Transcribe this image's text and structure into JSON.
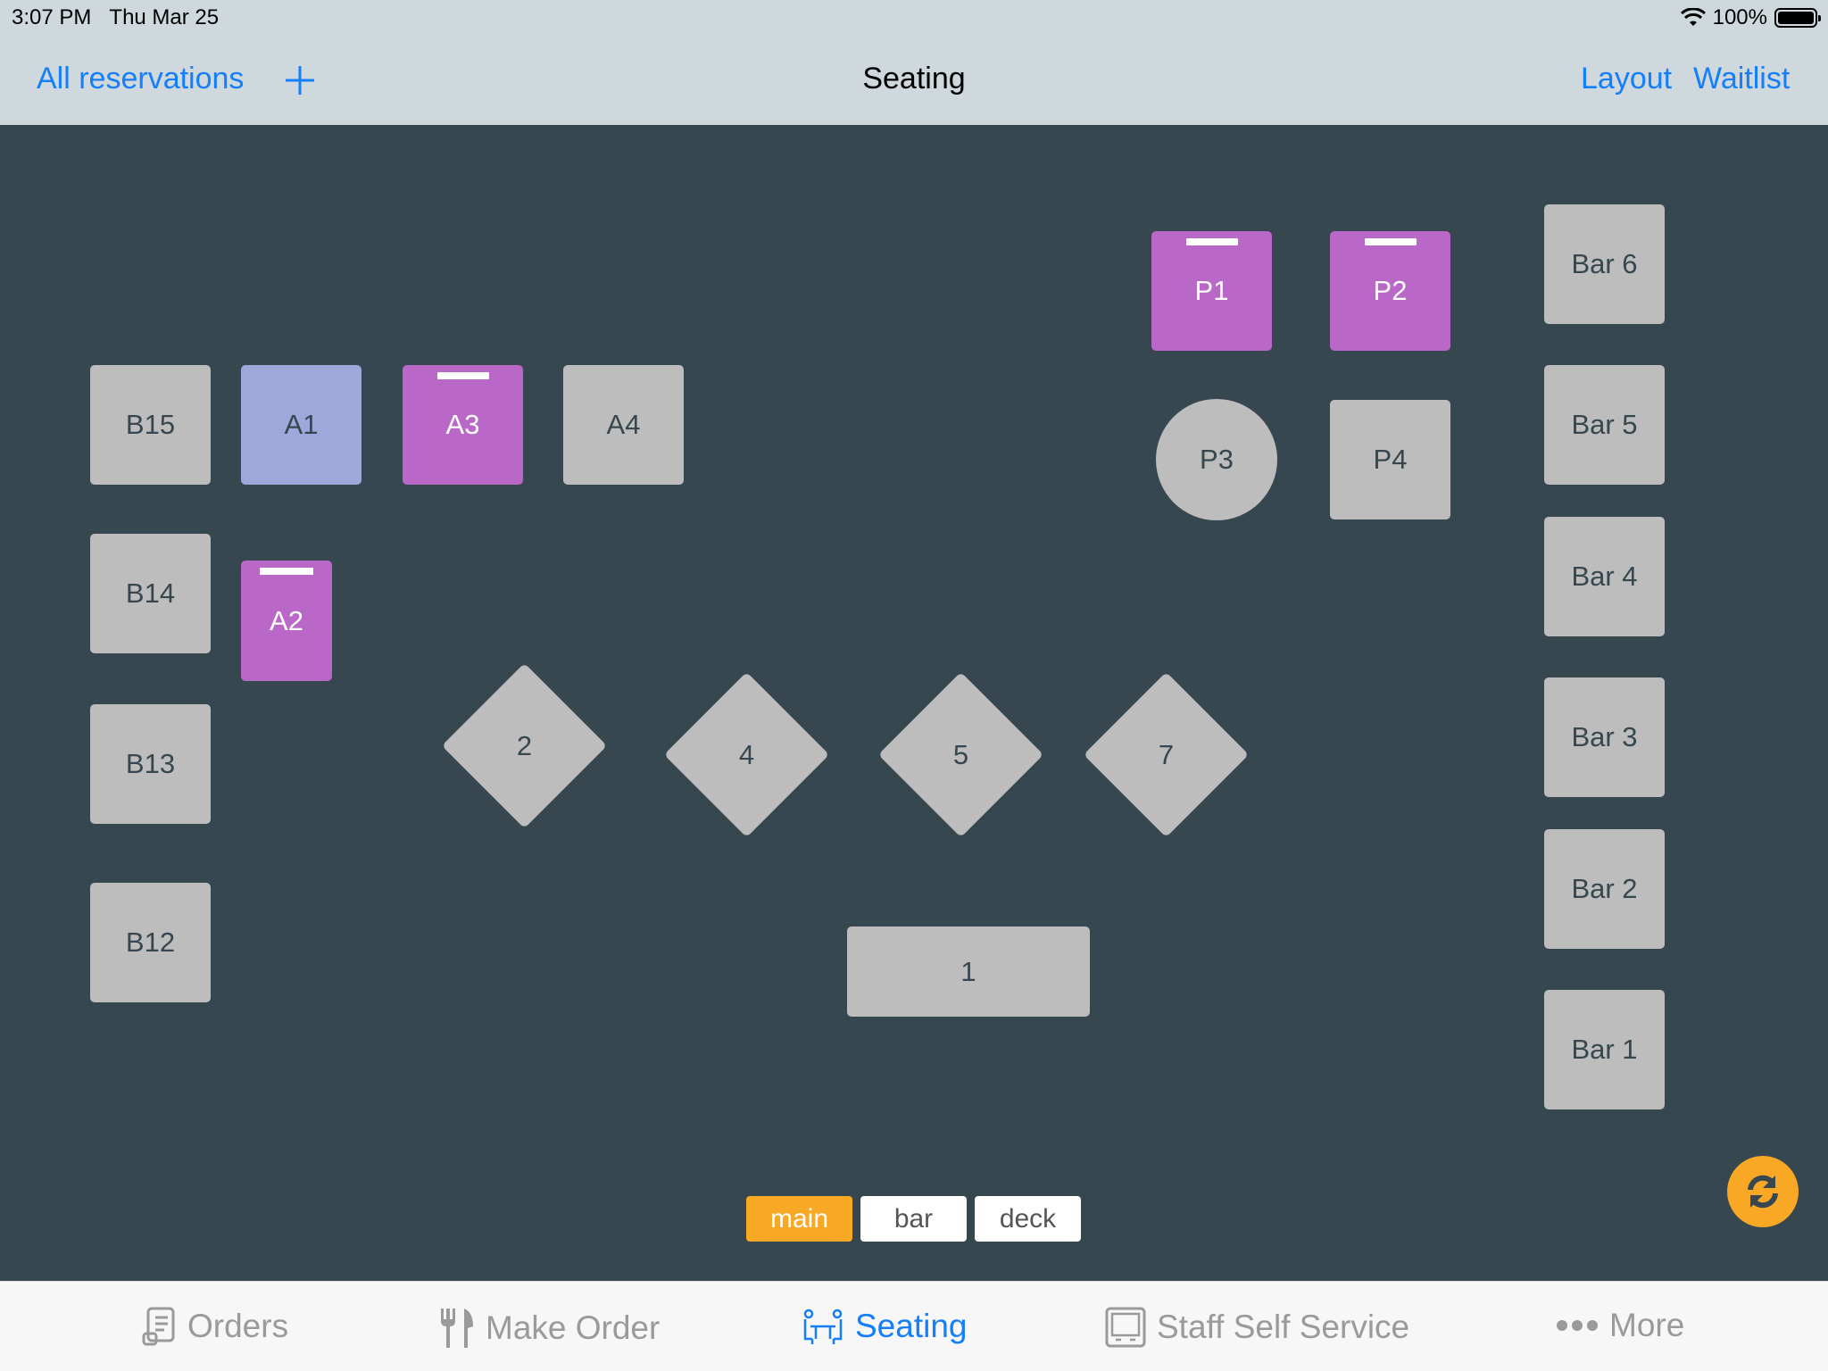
{
  "status_bar": {
    "time": "3:07 PM",
    "date": "Thu Mar 25",
    "battery": "100%",
    "icons": [
      "wifi-icon",
      "battery-icon"
    ]
  },
  "nav": {
    "left_link": "All reservations",
    "add_icon": "plus-icon",
    "title": "Seating",
    "right_links": [
      "Layout",
      "Waitlist"
    ]
  },
  "colors": {
    "floor": "#36474f",
    "table_free": "#bdbdbd",
    "table_occupied": "#ba68c8",
    "table_selected": "#9fa8da",
    "accent": "#f9a825",
    "link": "#147efb"
  },
  "tables": {
    "B15": {
      "label": "B15",
      "state": "free"
    },
    "A1": {
      "label": "A1",
      "state": "selected"
    },
    "A3": {
      "label": "A3",
      "state": "occupied"
    },
    "A4": {
      "label": "A4",
      "state": "free"
    },
    "B14": {
      "label": "B14",
      "state": "free"
    },
    "A2": {
      "label": "A2",
      "state": "occupied"
    },
    "B13": {
      "label": "B13",
      "state": "free"
    },
    "B12": {
      "label": "B12",
      "state": "free"
    },
    "P1": {
      "label": "P1",
      "state": "occupied"
    },
    "P2": {
      "label": "P2",
      "state": "occupied"
    },
    "P3": {
      "label": "P3",
      "state": "free",
      "shape": "circle"
    },
    "P4": {
      "label": "P4",
      "state": "free"
    },
    "Bar6": {
      "label": "Bar 6",
      "state": "free"
    },
    "Bar5": {
      "label": "Bar 5",
      "state": "free"
    },
    "Bar4": {
      "label": "Bar 4",
      "state": "free"
    },
    "Bar3": {
      "label": "Bar 3",
      "state": "free"
    },
    "Bar2": {
      "label": "Bar 2",
      "state": "free"
    },
    "Bar1": {
      "label": "Bar 1",
      "state": "free"
    },
    "T2": {
      "label": "2",
      "state": "free",
      "shape": "diamond"
    },
    "T4": {
      "label": "4",
      "state": "free",
      "shape": "diamond"
    },
    "T5": {
      "label": "5",
      "state": "free",
      "shape": "diamond"
    },
    "T7": {
      "label": "7",
      "state": "free",
      "shape": "diamond"
    },
    "T1": {
      "label": "1",
      "state": "free",
      "shape": "rectangle"
    }
  },
  "areas": {
    "selected": "main",
    "options": [
      "main",
      "bar",
      "deck"
    ]
  },
  "refresh_icon": "refresh-icon",
  "tabbar": {
    "active": "Seating",
    "items": [
      {
        "label": "Orders",
        "icon": "receipt-icon"
      },
      {
        "label": "Make Order",
        "icon": "fork-knife-icon"
      },
      {
        "label": "Seating",
        "icon": "seating-icon"
      },
      {
        "label": "Staff Self Service",
        "icon": "tablet-icon"
      },
      {
        "label": "More",
        "icon": "more-dots-icon"
      }
    ]
  }
}
